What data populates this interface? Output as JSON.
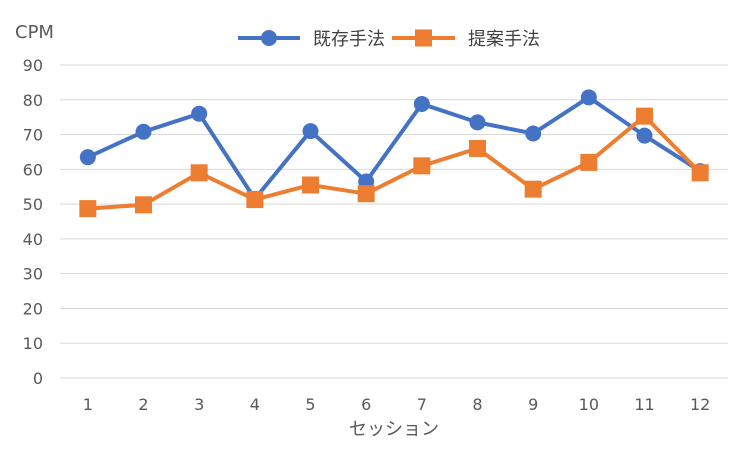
{
  "chart_data": {
    "type": "line",
    "xlabel": "セッション",
    "ylabel": "CPM",
    "x": [
      1,
      2,
      3,
      4,
      5,
      6,
      7,
      8,
      9,
      10,
      11,
      12
    ],
    "ylim": [
      0,
      90
    ],
    "yticks": [
      0,
      10,
      20,
      30,
      40,
      50,
      60,
      70,
      80,
      90
    ],
    "grid": "horizontal",
    "legend_position": "top-center",
    "series": [
      {
        "name": "既存手法",
        "color": "#4472C4",
        "marker": "circle",
        "values": [
          63.5,
          70.8,
          76.0,
          51.5,
          71.0,
          56.5,
          78.8,
          73.5,
          70.3,
          80.7,
          69.7,
          59.5
        ]
      },
      {
        "name": "提案手法",
        "color": "#ED7D31",
        "marker": "square",
        "values": [
          48.7,
          49.8,
          59.0,
          51.3,
          55.5,
          53.0,
          61.0,
          66.0,
          54.3,
          62.0,
          75.3,
          59.0
        ]
      }
    ]
  }
}
